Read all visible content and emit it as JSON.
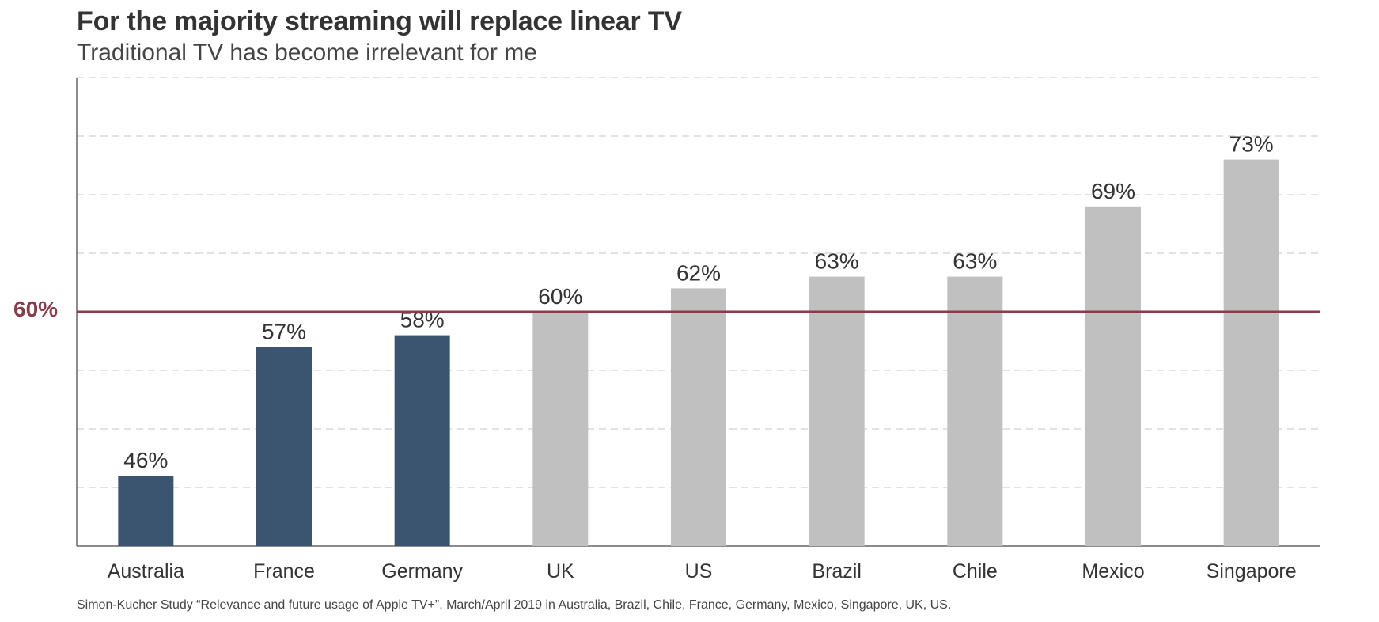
{
  "chart_data": {
    "type": "bar",
    "title": "For the majority streaming will replace linear TV",
    "subtitle": "Traditional TV has become irrelevant for me",
    "categories": [
      "Australia",
      "France",
      "Germany",
      "UK",
      "US",
      "Brazil",
      "Chile",
      "Mexico",
      "Singapore"
    ],
    "values": [
      46,
      57,
      58,
      60,
      62,
      63,
      63,
      69,
      73
    ],
    "data_labels": [
      "46%",
      "57%",
      "58%",
      "60%",
      "62%",
      "63%",
      "63%",
      "69%",
      "73%"
    ],
    "ylim": [
      40,
      80
    ],
    "grid": true,
    "reference_line": {
      "value": 60,
      "label": "60%",
      "color": "#8b3a4a"
    },
    "colors": {
      "below": "#3b5570",
      "at_or_above": "#c0c0c0",
      "grid": "#d9d9d9",
      "axis": "#666666"
    },
    "source": "Simon-Kucher Study “Relevance and future usage of Apple TV+”, March/April 2019 in Australia, Brazil, Chile, France, Germany, Mexico, Singapore, UK, US."
  }
}
